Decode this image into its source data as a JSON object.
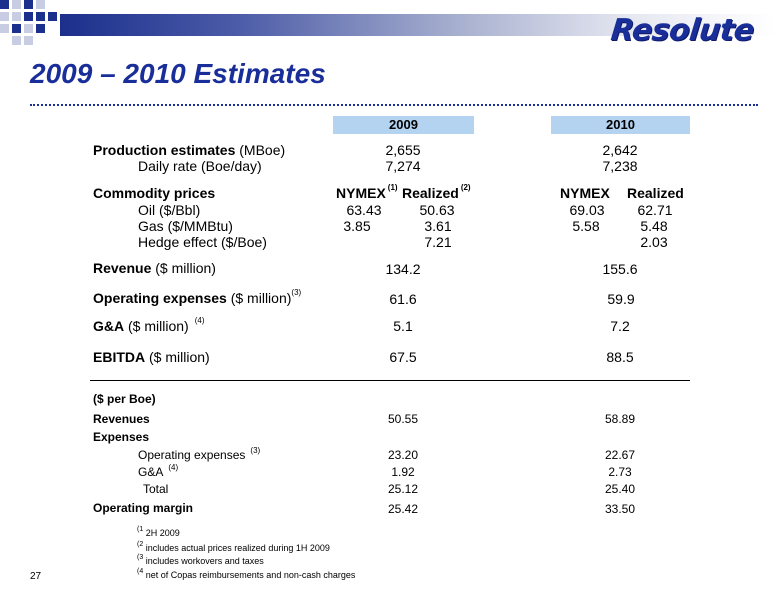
{
  "header": {
    "logo_text": "Resolute",
    "title": "2009 – 2010 Estimates"
  },
  "columns": {
    "y2009": "2009",
    "y2010": "2010"
  },
  "production": {
    "label": "Production estimates",
    "unit": " (MBoe)",
    "v2009": "2,655",
    "v2010": "2,642"
  },
  "daily_rate": {
    "label": "Daily rate (Boe/day)",
    "v2009": "7,274",
    "v2010": "7,238"
  },
  "commodity": {
    "label": "Commodity prices",
    "nymex": "NYMEX",
    "nymex_note": "(1)",
    "realized": "Realized",
    "realized_note": "(2)",
    "nymex_2010": "NYMEX",
    "realized_2010": "Realized",
    "oil": {
      "label": "Oil ($/Bbl)",
      "nymex_2009": "63.43",
      "realized_2009": "50.63",
      "nymex_2010": "69.03",
      "realized_2010": "62.71"
    },
    "gas": {
      "label": "Gas ($/MMBtu)",
      "nymex_2009": "3.85",
      "realized_2009": "3.61",
      "nymex_2010": "5.58",
      "realized_2010": "5.48"
    },
    "hedge": {
      "label": "Hedge effect ($/Boe)",
      "realized_2009": "7.21",
      "realized_2010": "2.03"
    }
  },
  "revenue": {
    "label": "Revenue",
    "unit": " ($ million)",
    "v2009": "134.2",
    "v2010": "155.6"
  },
  "opex": {
    "label": "Operating expenses",
    "unit": " ($ million)",
    "note": "(3)",
    "v2009": "61.6",
    "v2010": "59.9"
  },
  "ga": {
    "label": "G&A",
    "unit": " ($ million)",
    "note": "(4)",
    "v2009": "5.1",
    "v2010": "7.2"
  },
  "ebitda": {
    "label": "EBITDA",
    "unit": " ($ million)",
    "v2009": "67.5",
    "v2010": "88.5"
  },
  "per_boe": {
    "heading": "($ per Boe)",
    "revenues": {
      "label": "Revenues",
      "v2009": "50.55",
      "v2010": "58.89"
    },
    "expenses_label": "Expenses",
    "opex": {
      "label": "Operating expenses",
      "note": "(3)",
      "v2009": "23.20",
      "v2010": "22.67"
    },
    "ga": {
      "label": "G&A",
      "note": "(4)",
      "v2009": "1.92",
      "v2010": "2.73"
    },
    "total": {
      "label": "Total",
      "v2009": "25.12",
      "v2010": "25.40"
    },
    "margin": {
      "label": "Operating margin",
      "v2009": "25.42",
      "v2010": "33.50"
    }
  },
  "footnotes": [
    {
      "mark": "(1",
      "text": "2H 2009"
    },
    {
      "mark": "(2",
      "text": "includes actual prices realized during 1H 2009"
    },
    {
      "mark": "(3",
      "text": "includes workovers and taxes"
    },
    {
      "mark": "(4",
      "text": "net of Copas reimbursements and non-cash charges"
    }
  ],
  "page_number": "27",
  "colors": {
    "accent": "#1a2e9a",
    "column_header": "#b3d3f1"
  }
}
